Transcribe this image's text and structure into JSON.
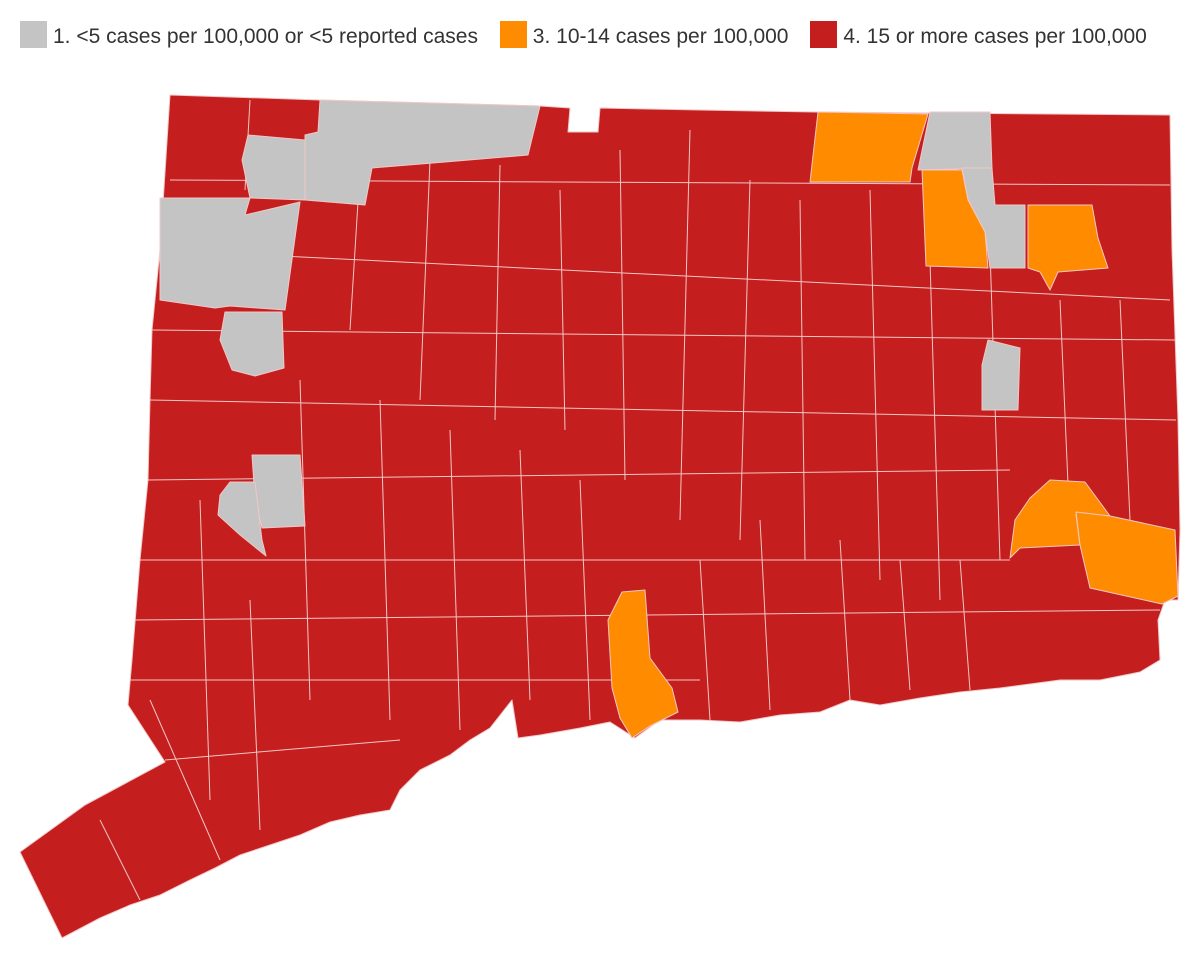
{
  "legend": {
    "items": [
      {
        "label": "1. <5 cases per 100,000 or <5 reported cases",
        "color": "#c4c4c4"
      },
      {
        "label": "3. 10-14 cases per 100,000",
        "color": "#ff8c00"
      },
      {
        "label": "4. 15 or more cases per 100,000",
        "color": "#c41e1e"
      }
    ]
  },
  "map": {
    "region": "Connecticut towns",
    "category_colors": {
      "1": "#c4c4c4",
      "3": "#ff8c00",
      "4": "#c41e1e"
    },
    "default_category": "4"
  }
}
